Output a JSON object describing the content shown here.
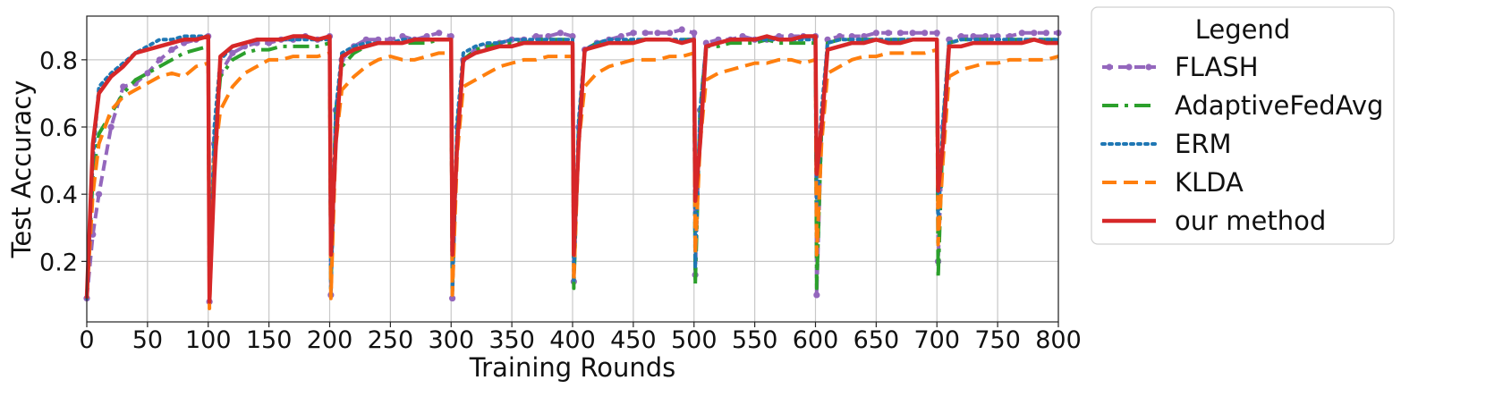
{
  "chart_data": {
    "type": "line",
    "title": "",
    "xlabel": "Training Rounds",
    "ylabel": "Test Accuracy",
    "xlim": [
      0,
      800
    ],
    "ylim": [
      0.02,
      0.93
    ],
    "xticks": [
      0,
      50,
      100,
      150,
      200,
      250,
      300,
      350,
      400,
      450,
      500,
      550,
      600,
      650,
      700,
      750,
      800
    ],
    "yticks": [
      0.2,
      0.4,
      0.6,
      0.8
    ],
    "ytick_labels": [
      "0.2",
      "0.4",
      "0.6",
      "0.8"
    ],
    "grid": true,
    "legend": {
      "title": "Legend",
      "placement": "outside-right-top"
    },
    "series": [
      {
        "name": "FLASH",
        "color": "#9467bd",
        "style": "dashed-markers",
        "x": [
          0,
          5,
          10,
          20,
          30,
          40,
          50,
          60,
          70,
          80,
          90,
          100,
          101,
          105,
          110,
          120,
          130,
          140,
          150,
          160,
          170,
          180,
          190,
          200,
          201,
          205,
          210,
          220,
          230,
          240,
          250,
          260,
          270,
          280,
          290,
          300,
          301,
          305,
          310,
          320,
          330,
          340,
          350,
          360,
          370,
          380,
          390,
          400,
          401,
          405,
          410,
          420,
          430,
          440,
          450,
          460,
          470,
          480,
          490,
          500,
          501,
          505,
          510,
          520,
          530,
          540,
          550,
          560,
          570,
          580,
          590,
          600,
          601,
          605,
          610,
          620,
          630,
          640,
          650,
          660,
          670,
          680,
          690,
          700,
          701,
          705,
          710,
          720,
          730,
          740,
          750,
          760,
          770,
          780,
          790,
          800
        ],
        "y": [
          0.09,
          0.28,
          0.4,
          0.6,
          0.72,
          0.73,
          0.76,
          0.8,
          0.83,
          0.85,
          0.86,
          0.87,
          0.08,
          0.55,
          0.76,
          0.82,
          0.84,
          0.85,
          0.85,
          0.86,
          0.86,
          0.87,
          0.86,
          0.87,
          0.1,
          0.65,
          0.8,
          0.84,
          0.86,
          0.86,
          0.86,
          0.87,
          0.86,
          0.87,
          0.88,
          0.87,
          0.09,
          0.6,
          0.8,
          0.83,
          0.84,
          0.85,
          0.86,
          0.86,
          0.87,
          0.87,
          0.88,
          0.87,
          0.14,
          0.6,
          0.83,
          0.85,
          0.86,
          0.87,
          0.88,
          0.88,
          0.88,
          0.88,
          0.89,
          0.88,
          0.16,
          0.65,
          0.85,
          0.86,
          0.86,
          0.87,
          0.86,
          0.86,
          0.87,
          0.87,
          0.87,
          0.87,
          0.1,
          0.6,
          0.86,
          0.87,
          0.87,
          0.87,
          0.88,
          0.88,
          0.88,
          0.88,
          0.88,
          0.88,
          0.2,
          0.6,
          0.86,
          0.87,
          0.87,
          0.87,
          0.87,
          0.87,
          0.88,
          0.88,
          0.88,
          0.88
        ]
      },
      {
        "name": "AdaptiveFedAvg",
        "color": "#2ca02c",
        "style": "dashdot",
        "x": [
          0,
          5,
          10,
          20,
          30,
          40,
          50,
          60,
          70,
          80,
          90,
          100,
          101,
          105,
          110,
          120,
          130,
          140,
          150,
          160,
          170,
          180,
          190,
          200,
          201,
          205,
          210,
          220,
          230,
          240,
          250,
          260,
          270,
          280,
          290,
          300,
          301,
          305,
          310,
          320,
          330,
          340,
          350,
          360,
          370,
          380,
          390,
          400,
          401,
          405,
          410,
          420,
          430,
          440,
          450,
          460,
          470,
          480,
          490,
          500,
          501,
          505,
          510,
          520,
          530,
          540,
          550,
          560,
          570,
          580,
          590,
          600,
          601,
          605,
          610,
          620,
          630,
          640,
          650,
          660,
          670,
          680,
          690,
          700,
          701,
          705,
          710,
          720,
          730,
          740,
          750,
          760,
          770,
          780,
          790,
          800
        ],
        "y": [
          0.09,
          0.45,
          0.58,
          0.64,
          0.7,
          0.74,
          0.76,
          0.78,
          0.8,
          0.82,
          0.83,
          0.84,
          0.09,
          0.55,
          0.75,
          0.8,
          0.82,
          0.83,
          0.83,
          0.84,
          0.84,
          0.84,
          0.84,
          0.85,
          0.12,
          0.65,
          0.78,
          0.82,
          0.84,
          0.85,
          0.85,
          0.85,
          0.85,
          0.85,
          0.86,
          0.86,
          0.12,
          0.6,
          0.8,
          0.83,
          0.84,
          0.85,
          0.85,
          0.85,
          0.86,
          0.86,
          0.86,
          0.86,
          0.12,
          0.6,
          0.83,
          0.85,
          0.85,
          0.85,
          0.86,
          0.86,
          0.86,
          0.86,
          0.86,
          0.86,
          0.13,
          0.65,
          0.84,
          0.84,
          0.85,
          0.85,
          0.85,
          0.86,
          0.85,
          0.85,
          0.85,
          0.85,
          0.12,
          0.6,
          0.85,
          0.86,
          0.86,
          0.86,
          0.86,
          0.86,
          0.86,
          0.86,
          0.86,
          0.86,
          0.15,
          0.6,
          0.85,
          0.86,
          0.86,
          0.86,
          0.86,
          0.86,
          0.86,
          0.86,
          0.86,
          0.86
        ]
      },
      {
        "name": "ERM",
        "color": "#1f77b4",
        "style": "dotted",
        "x": [
          0,
          5,
          10,
          20,
          30,
          40,
          50,
          60,
          70,
          80,
          90,
          100,
          101,
          105,
          110,
          120,
          130,
          140,
          150,
          160,
          170,
          180,
          190,
          200,
          201,
          205,
          210,
          220,
          230,
          240,
          250,
          260,
          270,
          280,
          290,
          300,
          301,
          305,
          310,
          320,
          330,
          340,
          350,
          360,
          370,
          380,
          390,
          400,
          401,
          405,
          410,
          420,
          430,
          440,
          450,
          460,
          470,
          480,
          490,
          500,
          501,
          505,
          510,
          520,
          530,
          540,
          550,
          560,
          570,
          580,
          590,
          600,
          601,
          605,
          610,
          620,
          630,
          640,
          650,
          660,
          670,
          680,
          690,
          700,
          701,
          705,
          710,
          720,
          730,
          740,
          750,
          760,
          770,
          780,
          790,
          800
        ],
        "y": [
          0.09,
          0.5,
          0.72,
          0.76,
          0.79,
          0.82,
          0.84,
          0.86,
          0.86,
          0.87,
          0.87,
          0.87,
          0.08,
          0.6,
          0.8,
          0.84,
          0.85,
          0.86,
          0.86,
          0.86,
          0.86,
          0.86,
          0.86,
          0.86,
          0.1,
          0.65,
          0.82,
          0.84,
          0.85,
          0.85,
          0.85,
          0.86,
          0.86,
          0.86,
          0.86,
          0.86,
          0.1,
          0.62,
          0.82,
          0.84,
          0.85,
          0.85,
          0.86,
          0.86,
          0.86,
          0.86,
          0.86,
          0.86,
          0.14,
          0.62,
          0.83,
          0.85,
          0.86,
          0.86,
          0.86,
          0.86,
          0.86,
          0.86,
          0.86,
          0.86,
          0.18,
          0.65,
          0.84,
          0.85,
          0.86,
          0.86,
          0.86,
          0.86,
          0.86,
          0.86,
          0.86,
          0.86,
          0.35,
          0.65,
          0.85,
          0.86,
          0.86,
          0.86,
          0.86,
          0.86,
          0.86,
          0.86,
          0.86,
          0.86,
          0.3,
          0.62,
          0.85,
          0.86,
          0.86,
          0.86,
          0.86,
          0.86,
          0.86,
          0.86,
          0.86,
          0.86
        ]
      },
      {
        "name": "KLDA",
        "color": "#ff7f0e",
        "style": "dashed",
        "x": [
          0,
          5,
          10,
          20,
          30,
          40,
          50,
          60,
          70,
          80,
          90,
          100,
          101,
          105,
          110,
          120,
          130,
          140,
          150,
          160,
          170,
          180,
          190,
          200,
          201,
          205,
          210,
          220,
          230,
          240,
          250,
          260,
          270,
          280,
          290,
          300,
          301,
          305,
          310,
          320,
          330,
          340,
          350,
          360,
          370,
          380,
          390,
          400,
          401,
          405,
          410,
          420,
          430,
          440,
          450,
          460,
          470,
          480,
          490,
          500,
          501,
          505,
          510,
          520,
          530,
          540,
          550,
          560,
          570,
          580,
          590,
          600,
          601,
          605,
          610,
          620,
          630,
          640,
          650,
          660,
          670,
          680,
          690,
          700,
          701,
          705,
          710,
          720,
          730,
          740,
          750,
          760,
          770,
          780,
          790,
          800
        ],
        "y": [
          0.09,
          0.4,
          0.55,
          0.65,
          0.69,
          0.71,
          0.73,
          0.75,
          0.76,
          0.75,
          0.78,
          0.79,
          0.06,
          0.5,
          0.65,
          0.72,
          0.76,
          0.78,
          0.8,
          0.8,
          0.81,
          0.81,
          0.81,
          0.82,
          0.09,
          0.55,
          0.71,
          0.75,
          0.78,
          0.8,
          0.81,
          0.8,
          0.8,
          0.81,
          0.82,
          0.82,
          0.1,
          0.52,
          0.72,
          0.74,
          0.76,
          0.78,
          0.79,
          0.8,
          0.8,
          0.81,
          0.81,
          0.81,
          0.14,
          0.55,
          0.72,
          0.76,
          0.78,
          0.79,
          0.8,
          0.8,
          0.8,
          0.81,
          0.81,
          0.82,
          0.22,
          0.55,
          0.74,
          0.76,
          0.77,
          0.78,
          0.79,
          0.79,
          0.8,
          0.8,
          0.79,
          0.8,
          0.22,
          0.55,
          0.76,
          0.78,
          0.8,
          0.81,
          0.81,
          0.82,
          0.82,
          0.82,
          0.82,
          0.83,
          0.25,
          0.5,
          0.75,
          0.77,
          0.78,
          0.79,
          0.79,
          0.8,
          0.8,
          0.8,
          0.8,
          0.81
        ]
      },
      {
        "name": "our method",
        "color": "#d62728",
        "style": "solid",
        "x": [
          0,
          5,
          10,
          20,
          30,
          40,
          50,
          60,
          70,
          80,
          90,
          100,
          101,
          105,
          110,
          120,
          130,
          140,
          150,
          160,
          170,
          180,
          190,
          200,
          201,
          205,
          210,
          220,
          230,
          240,
          250,
          260,
          270,
          280,
          290,
          300,
          301,
          305,
          310,
          320,
          330,
          340,
          350,
          360,
          370,
          380,
          390,
          400,
          401,
          405,
          410,
          420,
          430,
          440,
          450,
          460,
          470,
          480,
          490,
          500,
          501,
          505,
          510,
          520,
          530,
          540,
          550,
          560,
          570,
          580,
          590,
          600,
          601,
          605,
          610,
          620,
          630,
          640,
          650,
          660,
          670,
          680,
          690,
          700,
          701,
          705,
          710,
          720,
          730,
          740,
          750,
          760,
          770,
          780,
          790,
          800
        ],
        "y": [
          0.09,
          0.55,
          0.7,
          0.75,
          0.78,
          0.82,
          0.83,
          0.84,
          0.85,
          0.86,
          0.86,
          0.87,
          0.08,
          0.45,
          0.81,
          0.84,
          0.85,
          0.86,
          0.86,
          0.86,
          0.87,
          0.87,
          0.86,
          0.87,
          0.22,
          0.55,
          0.81,
          0.83,
          0.84,
          0.85,
          0.85,
          0.85,
          0.86,
          0.86,
          0.86,
          0.86,
          0.22,
          0.55,
          0.8,
          0.82,
          0.83,
          0.84,
          0.84,
          0.85,
          0.85,
          0.85,
          0.85,
          0.85,
          0.22,
          0.55,
          0.83,
          0.84,
          0.85,
          0.85,
          0.85,
          0.86,
          0.86,
          0.86,
          0.85,
          0.86,
          0.38,
          0.55,
          0.84,
          0.85,
          0.86,
          0.86,
          0.86,
          0.87,
          0.86,
          0.86,
          0.87,
          0.87,
          0.46,
          0.6,
          0.83,
          0.84,
          0.85,
          0.85,
          0.86,
          0.85,
          0.85,
          0.86,
          0.86,
          0.86,
          0.41,
          0.55,
          0.84,
          0.84,
          0.85,
          0.85,
          0.85,
          0.85,
          0.85,
          0.86,
          0.85,
          0.85
        ]
      }
    ]
  }
}
